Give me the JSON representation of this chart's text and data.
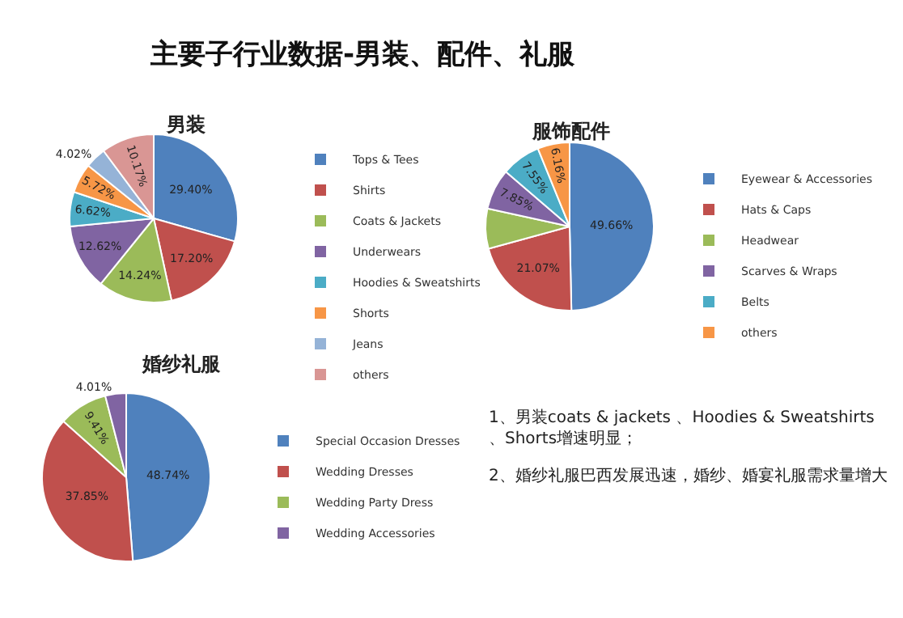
{
  "chart_data": [
    {
      "type": "pie",
      "title": "男装",
      "categories": [
        "Tops & Tees",
        "Shirts",
        "Coats & Jackets",
        "Underwears",
        "Hoodies & Sweatshirts",
        "Shorts",
        "Jeans",
        "others"
      ],
      "values": [
        29.4,
        17.2,
        14.24,
        12.62,
        6.62,
        5.72,
        4.02,
        10.17
      ],
      "value_labels": [
        "29.40%",
        "17.20%",
        "14.24%",
        "12.62%",
        "6.62%",
        "5.72%",
        "4.02%",
        "10.17%"
      ],
      "colors": [
        "#4f81bd",
        "#c0504d",
        "#9bbb59",
        "#8064a2",
        "#4bacc6",
        "#f79646",
        "#95b3d7",
        "#d99694"
      ],
      "legend": "right"
    },
    {
      "type": "pie",
      "title": "服饰配件",
      "categories": [
        "Eyewear & Accessories",
        "Hats & Caps",
        "Headwear",
        "Scarves & Wraps",
        "Belts",
        "others"
      ],
      "values": [
        49.66,
        21.07,
        7.71,
        7.85,
        7.55,
        6.16
      ],
      "value_labels": [
        "49.66%",
        "21.07%",
        null,
        "7.85%",
        "7.55%",
        "6.16%"
      ],
      "colors": [
        "#4f81bd",
        "#c0504d",
        "#9bbb59",
        "#8064a2",
        "#4bacc6",
        "#f79646"
      ],
      "legend": "right"
    },
    {
      "type": "pie",
      "title": "婚纱礼服",
      "categories": [
        "Special Occasion Dresses",
        "Wedding Dresses",
        "Wedding Party Dress",
        "Wedding Accessories"
      ],
      "values": [
        48.74,
        37.85,
        9.41,
        4.01
      ],
      "value_labels": [
        "48.74%",
        "37.85%",
        "9.41%",
        "4.01%"
      ],
      "colors": [
        "#4f81bd",
        "#c0504d",
        "#9bbb59",
        "#8064a2"
      ],
      "legend": "right"
    },
    {
      "type": "other",
      "title": "主要子行业数据-男装、配件、礼服",
      "annotations": [
        "1、男装coats & jackets 、Hoodies & Sweatshirts、Shorts增速明显；",
        "2、婚纱礼服巴西发展迅速，婚纱、婚宴礼服需求量增大"
      ]
    }
  ]
}
